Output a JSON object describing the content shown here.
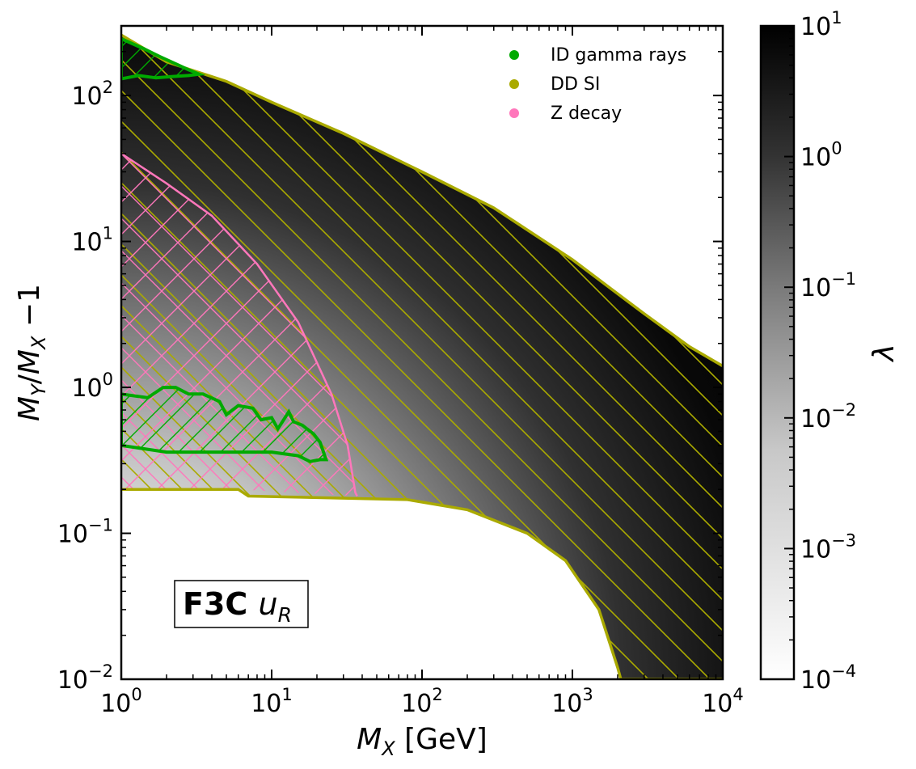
{
  "chart_data": {
    "type": "heatmap",
    "xlabel": "M_X [GeV]",
    "ylabel": "M_Y/M_X − 1",
    "x_scale": "log",
    "y_scale": "log",
    "xlim": [
      1,
      10000
    ],
    "ylim": [
      0.01,
      300
    ],
    "x_ticks": [
      {
        "value": 1,
        "base": "10",
        "exp": "0"
      },
      {
        "value": 10,
        "base": "10",
        "exp": "1"
      },
      {
        "value": 100,
        "base": "10",
        "exp": "2"
      },
      {
        "value": 1000,
        "base": "10",
        "exp": "3"
      },
      {
        "value": 10000,
        "base": "10",
        "exp": "4"
      }
    ],
    "y_ticks": [
      {
        "value": 0.01,
        "base": "10",
        "exp": "−2"
      },
      {
        "value": 0.1,
        "base": "10",
        "exp": "−1"
      },
      {
        "value": 1,
        "base": "10",
        "exp": "0"
      },
      {
        "value": 10,
        "base": "10",
        "exp": "1"
      },
      {
        "value": 100,
        "base": "10",
        "exp": "2"
      }
    ],
    "colorbar": {
      "label": "λ",
      "scale": "log",
      "range": [
        0.0001,
        10
      ],
      "colormap": "greys",
      "ticks": [
        {
          "value": 0.0001,
          "base": "10",
          "exp": "−4"
        },
        {
          "value": 0.001,
          "base": "10",
          "exp": "−3"
        },
        {
          "value": 0.01,
          "base": "10",
          "exp": "−2"
        },
        {
          "value": 0.1,
          "base": "10",
          "exp": "−1"
        },
        {
          "value": 1,
          "base": "10",
          "exp": "0"
        },
        {
          "value": 10,
          "base": "10",
          "exp": "1"
        }
      ]
    },
    "panel_label": {
      "main": "F3C ",
      "var": "u",
      "sub": "R"
    },
    "legend": {
      "placement": "top-right",
      "entries": [
        {
          "label": "ID gamma rays",
          "color": "#00aa00"
        },
        {
          "label": "DD SI",
          "color": "#aaaa00"
        },
        {
          "label": "Z decay",
          "color": "#ff77bb"
        }
      ]
    },
    "allowed_region": {
      "description": "shaded region between upper and lower relic-density boundaries",
      "upper_boundary": [
        [
          1,
          260
        ],
        [
          2,
          170
        ],
        [
          5,
          125
        ],
        [
          10,
          90
        ],
        [
          30,
          55
        ],
        [
          100,
          30
        ],
        [
          300,
          17
        ],
        [
          1000,
          7.5
        ],
        [
          3000,
          3.2
        ],
        [
          6000,
          1.9
        ],
        [
          10000,
          1.4
        ]
      ],
      "lower_boundary": [
        [
          1,
          0.2
        ],
        [
          6,
          0.2
        ],
        [
          7,
          0.18
        ],
        [
          80,
          0.17
        ],
        [
          200,
          0.145
        ],
        [
          500,
          0.1
        ],
        [
          900,
          0.065
        ],
        [
          1500,
          0.03
        ],
        [
          2000,
          0.012
        ],
        [
          2100,
          0.01
        ],
        [
          10000,
          0.01
        ]
      ]
    },
    "exclusions": [
      {
        "name": "DD SI",
        "color": "#aaaa00",
        "hatch": "diagonal",
        "region": "entire allowed region",
        "boundary_upper": [
          [
            1,
            260
          ],
          [
            2,
            170
          ],
          [
            5,
            125
          ],
          [
            10,
            90
          ],
          [
            30,
            55
          ],
          [
            100,
            30
          ],
          [
            300,
            17
          ],
          [
            1000,
            7.5
          ],
          [
            3000,
            3.2
          ],
          [
            6000,
            1.9
          ],
          [
            10000,
            1.4
          ]
        ],
        "boundary_lower": [
          [
            1,
            0.2
          ],
          [
            6,
            0.2
          ],
          [
            7,
            0.18
          ],
          [
            80,
            0.17
          ],
          [
            200,
            0.145
          ],
          [
            500,
            0.1
          ],
          [
            900,
            0.065
          ],
          [
            1500,
            0.03
          ],
          [
            2000,
            0.012
          ],
          [
            2100,
            0.01
          ],
          [
            10000,
            0.01
          ]
        ]
      },
      {
        "name": "Z decay",
        "color": "#ff77bb",
        "hatch": "cross",
        "boundary": [
          [
            1,
            40
          ],
          [
            2,
            25
          ],
          [
            4,
            15
          ],
          [
            8,
            7
          ],
          [
            15,
            2.8
          ],
          [
            25,
            0.9
          ],
          [
            32,
            0.4
          ],
          [
            36,
            0.19
          ],
          [
            37,
            0.18
          ]
        ]
      },
      {
        "name": "ID gamma rays",
        "color": "#00aa00",
        "hatch": "diagonal",
        "polygon_low": [
          [
            1,
            0.9
          ],
          [
            1.5,
            0.85
          ],
          [
            1.9,
            1.0
          ],
          [
            2.3,
            1.0
          ],
          [
            2.8,
            0.9
          ],
          [
            3.5,
            0.9
          ],
          [
            4.5,
            0.8
          ],
          [
            5,
            0.65
          ],
          [
            6,
            0.75
          ],
          [
            7.5,
            0.72
          ],
          [
            8.5,
            0.6
          ],
          [
            10,
            0.62
          ],
          [
            11,
            0.52
          ],
          [
            13,
            0.68
          ],
          [
            14,
            0.58
          ],
          [
            16,
            0.55
          ],
          [
            19,
            0.48
          ],
          [
            21,
            0.42
          ],
          [
            23,
            0.32
          ],
          [
            21,
            0.32
          ],
          [
            18,
            0.31
          ],
          [
            15,
            0.34
          ],
          [
            10,
            0.36
          ],
          [
            5,
            0.36
          ],
          [
            2,
            0.36
          ],
          [
            1,
            0.4
          ]
        ],
        "polygon_high": [
          [
            1,
            245
          ],
          [
            1.4,
            210
          ],
          [
            1.8,
            185
          ],
          [
            2.3,
            165
          ],
          [
            2.8,
            150
          ],
          [
            3.3,
            140
          ],
          [
            2.8,
            137
          ],
          [
            2.2,
            135
          ],
          [
            1.7,
            132
          ],
          [
            1.3,
            137
          ],
          [
            1,
            130
          ]
        ]
      }
    ]
  }
}
